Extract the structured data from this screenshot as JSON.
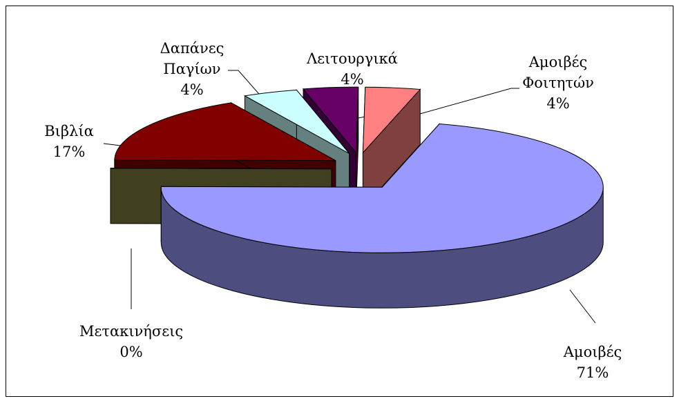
{
  "chart_data": {
    "type": "pie",
    "categories": [
      "Αμοιβές",
      "Μετακινήσεις",
      "Βιβλία",
      "Δαπάνες Παγίων",
      "Λειτουργικά",
      "Αμοιβές Φοιτητών"
    ],
    "values": [
      71,
      0,
      17,
      4,
      4,
      4
    ],
    "value_labels": [
      "71%",
      "0%",
      "17%",
      "4%",
      "4%",
      "4%"
    ],
    "colors": [
      "#9999ff",
      "#808040",
      "#800000",
      "#ccffff",
      "#660066",
      "#ff8080"
    ]
  }
}
